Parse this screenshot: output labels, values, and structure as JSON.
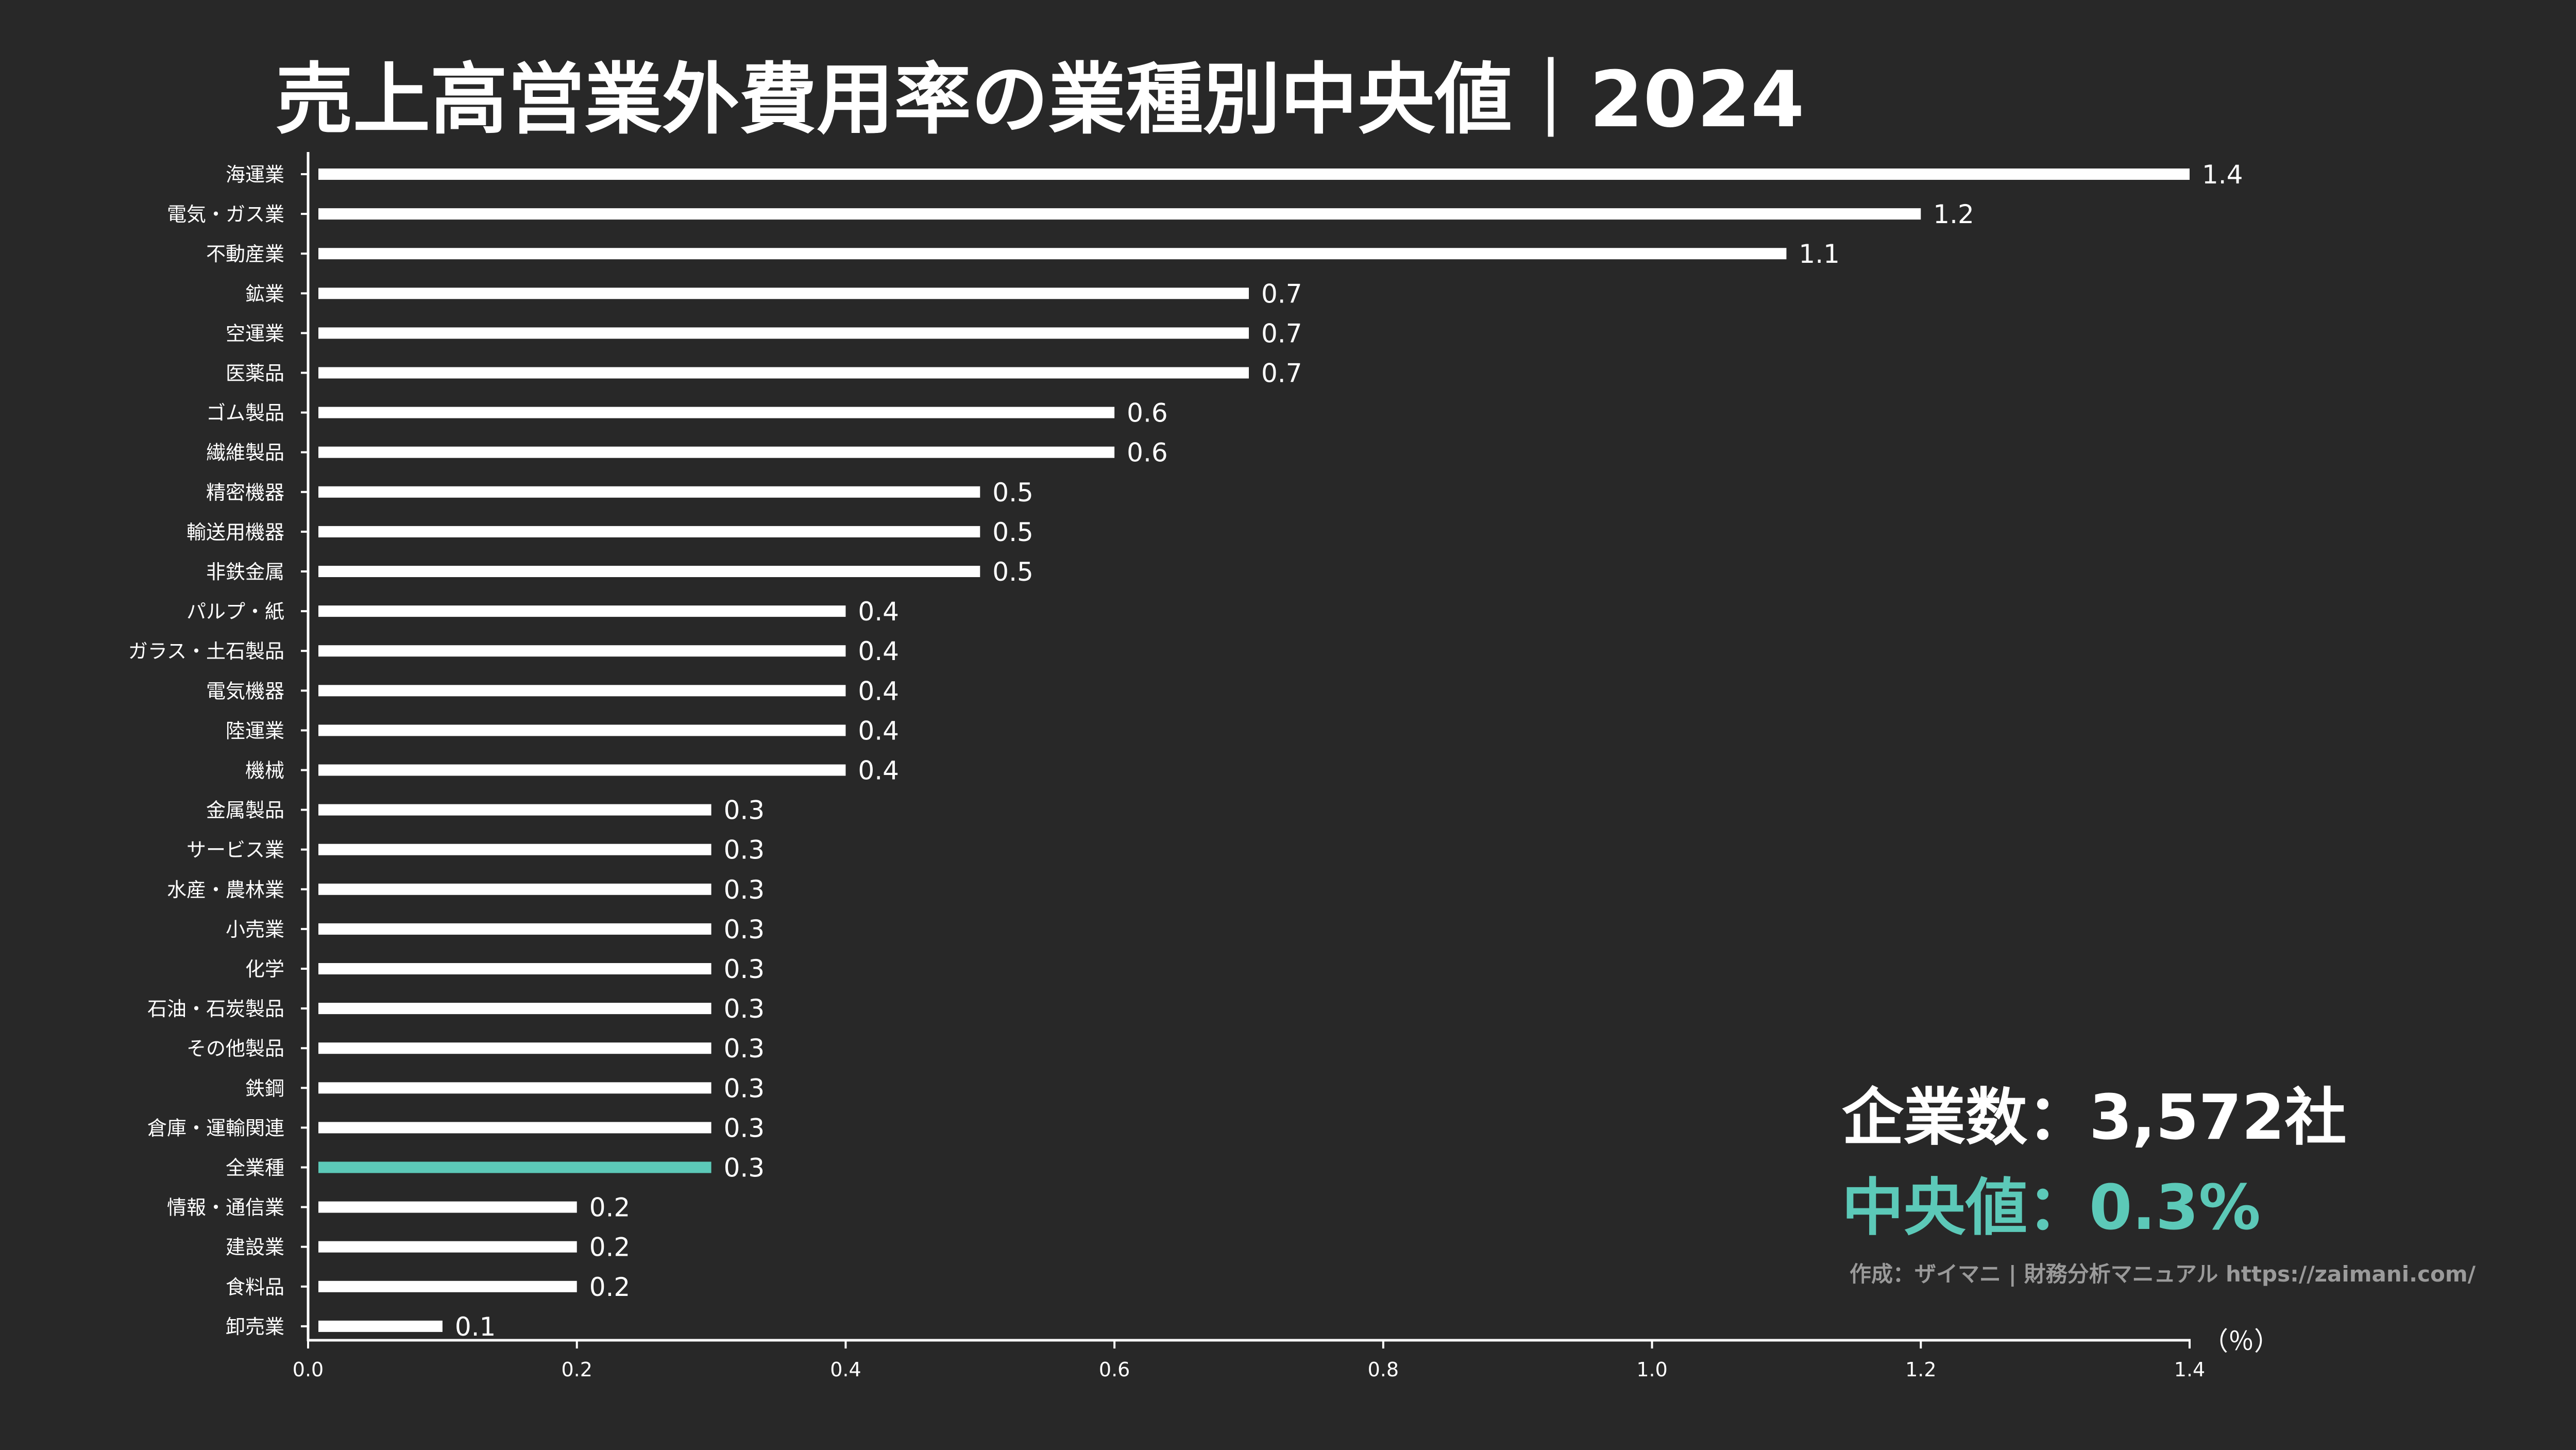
{
  "colors": {
    "background": "#282828",
    "bar": "#ffffff",
    "highlight": "#5cc9b8",
    "text": "#ffffff",
    "credit": "#9a9a9a"
  },
  "annotation": {
    "company_count": "企業数：3,572社",
    "median": "中央値：0.3%",
    "credit": "作成：ザイマニ | 財務分析マニュアル https://zaimani.com/"
  },
  "chart_data": {
    "type": "bar",
    "orientation": "horizontal",
    "title": "売上高営業外費用率の業種別中央値｜2024",
    "xlabel": "（％）",
    "ylabel": "",
    "xlim": [
      0,
      1.4
    ],
    "xticks": [
      "0.0",
      "0.2",
      "0.4",
      "0.6",
      "0.8",
      "1.0",
      "1.2",
      "1.4"
    ],
    "xtick_values": [
      0,
      0.2,
      0.4,
      0.6,
      0.8,
      1.0,
      1.2,
      1.4
    ],
    "grid": false,
    "highlight_category": "全業種",
    "categories": [
      "海運業",
      "電気・ガス業",
      "不動産業",
      "鉱業",
      "空運業",
      "医薬品",
      "ゴム製品",
      "繊維製品",
      "精密機器",
      "輸送用機器",
      "非鉄金属",
      "パルプ・紙",
      "ガラス・土石製品",
      "電気機器",
      "陸運業",
      "機械",
      "金属製品",
      "サービス業",
      "水産・農林業",
      "小売業",
      "化学",
      "石油・石炭製品",
      "その他製品",
      "鉄鋼",
      "倉庫・運輸関連",
      "全業種",
      "情報・通信業",
      "建設業",
      "食料品",
      "卸売業"
    ],
    "values": [
      1.4,
      1.2,
      1.1,
      0.7,
      0.7,
      0.7,
      0.6,
      0.6,
      0.5,
      0.5,
      0.5,
      0.4,
      0.4,
      0.4,
      0.4,
      0.4,
      0.3,
      0.3,
      0.3,
      0.3,
      0.3,
      0.3,
      0.3,
      0.3,
      0.3,
      0.3,
      0.2,
      0.2,
      0.2,
      0.1
    ],
    "value_labels": [
      "1.4",
      "1.2",
      "1.1",
      "0.7",
      "0.7",
      "0.7",
      "0.6",
      "0.6",
      "0.5",
      "0.5",
      "0.5",
      "0.4",
      "0.4",
      "0.4",
      "0.4",
      "0.4",
      "0.3",
      "0.3",
      "0.3",
      "0.3",
      "0.3",
      "0.3",
      "0.3",
      "0.3",
      "0.3",
      "0.3",
      "0.2",
      "0.2",
      "0.2",
      "0.1"
    ]
  }
}
